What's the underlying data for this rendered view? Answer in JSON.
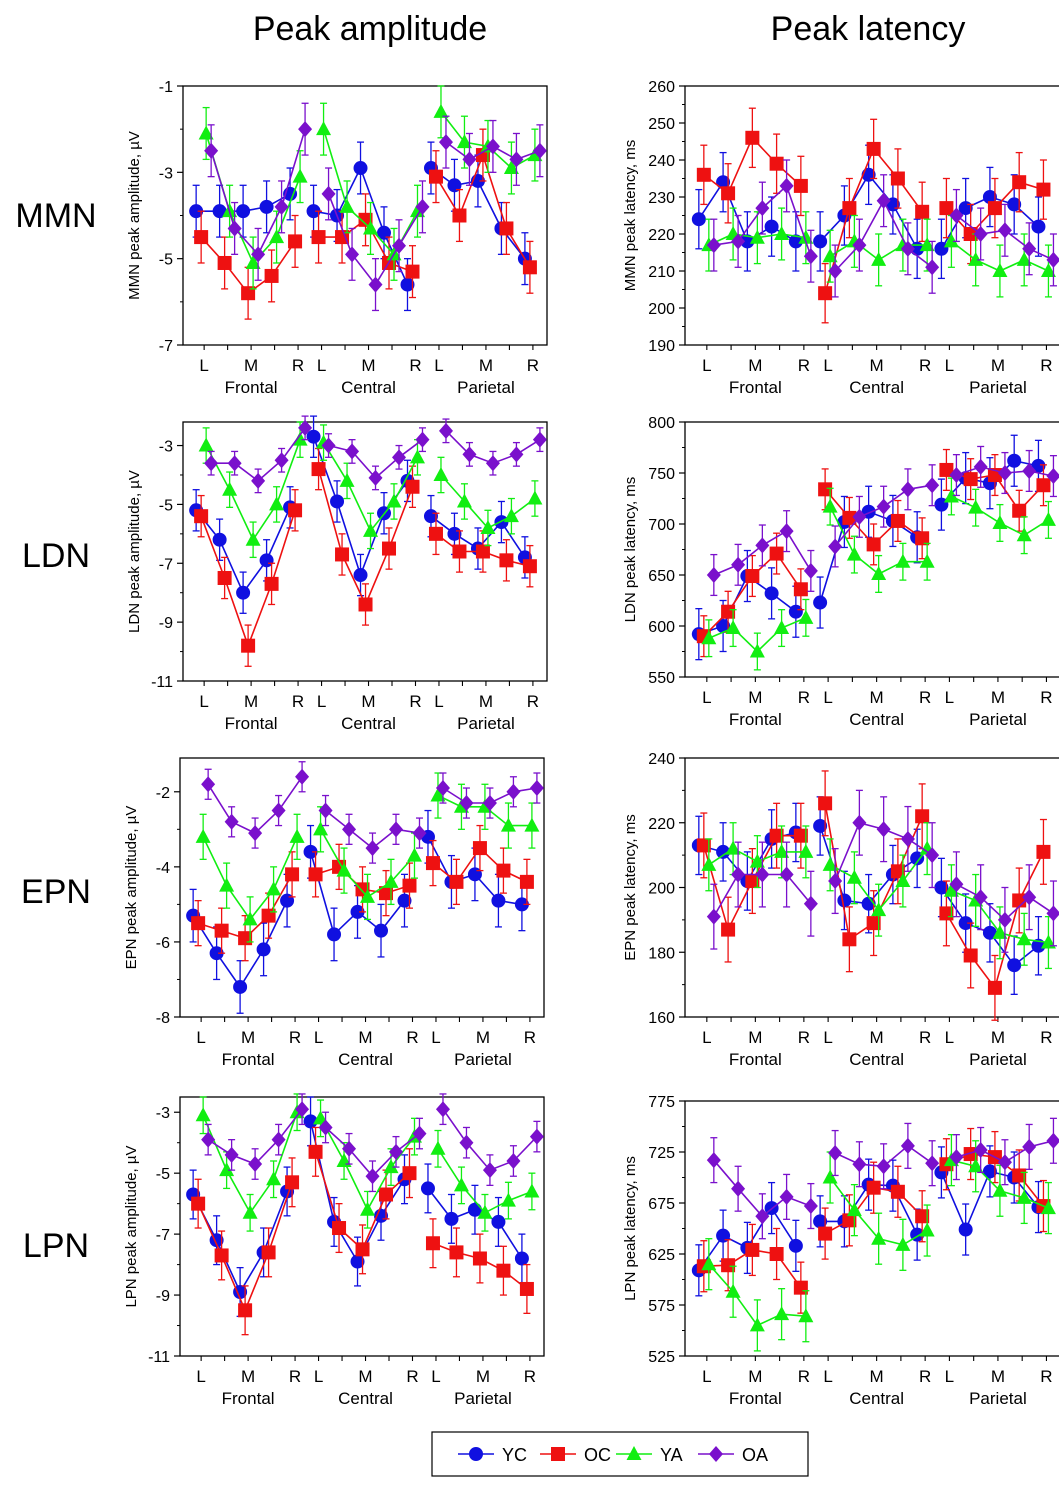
{
  "column_titles": [
    "Peak amplitude",
    "Peak latency"
  ],
  "row_labels": [
    "MMN",
    "LDN",
    "EPN",
    "LPN"
  ],
  "x_ticks": [
    "L",
    "M",
    "R",
    "L",
    "M",
    "R",
    "L",
    "M",
    "R"
  ],
  "regions": [
    "Frontal",
    "Central",
    "Parietal"
  ],
  "legend": [
    {
      "name": "YC",
      "color": "#1010e0",
      "marker": "circle"
    },
    {
      "name": "OC",
      "color": "#ee1111",
      "marker": "square"
    },
    {
      "name": "YA",
      "color": "#11ee11",
      "marker": "triangle"
    },
    {
      "name": "OA",
      "color": "#7a10cc",
      "marker": "diamond"
    }
  ],
  "chart_data": [
    {
      "type": "line",
      "component": "MMN",
      "measure": "amplitude",
      "ylabel": "MMN peak amplitude, µV",
      "ylim": [
        -7,
        -1
      ],
      "yticks": [
        -7,
        -5,
        -3,
        -1
      ],
      "ytick_labels": [
        "-7",
        "-5",
        "-3",
        "-1"
      ],
      "x": [
        1,
        2,
        3,
        4,
        5,
        6,
        7,
        8,
        9,
        10,
        11,
        12,
        13,
        14,
        15
      ],
      "series": [
        {
          "name": "YC",
          "values": [
            -3.9,
            -3.9,
            -3.9,
            -3.8,
            -3.5,
            -3.9,
            -4.0,
            -2.9,
            -4.4,
            -5.6,
            -2.9,
            -3.3,
            -3.2,
            -4.3,
            -5.0
          ],
          "err": 0.6
        },
        {
          "name": "OC",
          "values": [
            -4.5,
            -5.1,
            -5.8,
            -5.4,
            -4.6,
            -4.5,
            -4.5,
            -4.1,
            -5.1,
            -5.3,
            -3.1,
            -4.0,
            -2.6,
            -4.3,
            -5.2
          ],
          "err": 0.6
        },
        {
          "name": "YA",
          "values": [
            -2.1,
            -3.9,
            -5.1,
            -4.5,
            -3.1,
            -2.0,
            -3.8,
            -4.3,
            -4.9,
            -3.9,
            -1.6,
            -2.3,
            -2.4,
            -2.9,
            -2.6
          ],
          "err": 0.6
        },
        {
          "name": "OA",
          "values": [
            -2.5,
            -4.3,
            -4.9,
            -3.8,
            -2.0,
            -3.5,
            -4.9,
            -5.6,
            -4.7,
            -3.8,
            -2.3,
            -2.7,
            -2.4,
            -2.7,
            -2.5
          ],
          "err": 0.6
        }
      ]
    },
    {
      "type": "line",
      "component": "MMN",
      "measure": "latency",
      "ylabel": "MMN peak latency, ms",
      "ylim": [
        190,
        260
      ],
      "yticks": [
        190,
        200,
        210,
        220,
        230,
        240,
        250,
        260
      ],
      "ytick_labels": [
        "190",
        "200",
        "210",
        "220",
        "230",
        "240",
        "250",
        "260"
      ],
      "x": [
        1,
        2,
        3,
        4,
        5,
        6,
        7,
        8,
        9,
        10,
        11,
        12,
        13,
        14,
        15
      ],
      "series": [
        {
          "name": "YC",
          "values": [
            224,
            234,
            218,
            222,
            218,
            218,
            225,
            236,
            228,
            216,
            216,
            227,
            230,
            228,
            222
          ],
          "err": 8
        },
        {
          "name": "OC",
          "values": [
            236,
            231,
            246,
            239,
            233,
            204,
            227,
            243,
            235,
            226,
            227,
            220,
            227,
            234,
            232
          ],
          "err": 8
        },
        {
          "name": "YA",
          "values": [
            217,
            220,
            219,
            220,
            219,
            214,
            218,
            213,
            217,
            217,
            218,
            213,
            210,
            213,
            210
          ],
          "err": 7
        },
        {
          "name": "OA",
          "values": [
            217,
            218,
            227,
            233,
            214,
            210,
            217,
            229,
            216,
            211,
            225,
            220,
            221,
            216,
            213
          ],
          "err": 7
        }
      ]
    },
    {
      "type": "line",
      "component": "LDN",
      "measure": "amplitude",
      "ylabel": "LDN peak amplitude, µV",
      "ylim": [
        -11,
        -2.2
      ],
      "yticks": [
        -11,
        -9,
        -7,
        -5,
        -3
      ],
      "ytick_labels": [
        "-11",
        "-9",
        "-7",
        "-5",
        "-3"
      ],
      "x": [
        1,
        2,
        3,
        4,
        5,
        6,
        7,
        8,
        9,
        10,
        11,
        12,
        13,
        14,
        15
      ],
      "series": [
        {
          "name": "YC",
          "values": [
            -5.2,
            -6.2,
            -8.0,
            -6.9,
            -5.1,
            -2.7,
            -4.9,
            -7.4,
            -5.3,
            -4.2,
            -5.4,
            -6.0,
            -6.5,
            -5.6,
            -6.8
          ],
          "err": 0.7
        },
        {
          "name": "OC",
          "values": [
            -5.4,
            -7.5,
            -9.8,
            -7.7,
            -5.2,
            -3.8,
            -6.7,
            -8.4,
            -6.5,
            -4.4,
            -6.0,
            -6.6,
            -6.6,
            -6.9,
            -7.1
          ],
          "err": 0.7
        },
        {
          "name": "YA",
          "values": [
            -3.0,
            -4.5,
            -6.2,
            -5.0,
            -2.8,
            -2.9,
            -4.2,
            -5.9,
            -4.9,
            -3.4,
            -4.0,
            -4.9,
            -5.8,
            -5.4,
            -4.8
          ],
          "err": 0.6
        },
        {
          "name": "OA",
          "values": [
            -3.6,
            -3.6,
            -4.2,
            -3.5,
            -2.4,
            -3.0,
            -3.2,
            -4.1,
            -3.4,
            -2.8,
            -2.5,
            -3.3,
            -3.6,
            -3.3,
            -2.8
          ],
          "err": 0.4
        }
      ]
    },
    {
      "type": "line",
      "component": "LDN",
      "measure": "latency",
      "ylabel": "LDN peak latency, ms",
      "ylim": [
        550,
        800
      ],
      "yticks": [
        550,
        600,
        650,
        700,
        750,
        800
      ],
      "ytick_labels": [
        "550",
        "600",
        "650",
        "700",
        "750",
        "800"
      ],
      "x": [
        1,
        2,
        3,
        4,
        5,
        6,
        7,
        8,
        9,
        10,
        11,
        12,
        13,
        14,
        15
      ],
      "series": [
        {
          "name": "YC",
          "values": [
            592,
            600,
            649,
            632,
            614,
            623,
            702,
            712,
            703,
            687,
            719,
            745,
            740,
            762,
            757
          ],
          "err": 25
        },
        {
          "name": "OC",
          "values": [
            590,
            614,
            649,
            671,
            636,
            734,
            706,
            680,
            703,
            686,
            753,
            744,
            748,
            713,
            738
          ],
          "err": 20
        },
        {
          "name": "YA",
          "values": [
            588,
            598,
            575,
            598,
            608,
            717,
            670,
            651,
            663,
            663,
            727,
            716,
            701,
            689,
            704
          ],
          "err": 18
        },
        {
          "name": "OA",
          "values": [
            650,
            660,
            679,
            693,
            654,
            678,
            707,
            717,
            734,
            738,
            748,
            756,
            750,
            752,
            747
          ],
          "err": 20
        }
      ]
    },
    {
      "type": "line",
      "component": "EPN",
      "measure": "amplitude",
      "ylabel": "EPN peak amplitude, µV",
      "ylim": [
        -8,
        -1.1
      ],
      "yticks": [
        -8,
        -6,
        -4,
        -2
      ],
      "ytick_labels": [
        "-8",
        "-6",
        "-4",
        "-2"
      ],
      "x": [
        1,
        2,
        3,
        4,
        5,
        6,
        7,
        8,
        9,
        10,
        11,
        12,
        13,
        14,
        15
      ],
      "series": [
        {
          "name": "YC",
          "values": [
            -5.3,
            -6.3,
            -7.2,
            -6.2,
            -4.9,
            -3.6,
            -5.8,
            -5.2,
            -5.7,
            -4.9,
            -3.2,
            -4.4,
            -4.2,
            -4.9,
            -5.0
          ],
          "err": 0.7
        },
        {
          "name": "OC",
          "values": [
            -5.5,
            -5.7,
            -5.9,
            -5.3,
            -4.2,
            -4.2,
            -4.0,
            -4.6,
            -4.7,
            -4.5,
            -3.9,
            -4.4,
            -3.5,
            -4.1,
            -4.4
          ],
          "err": 0.6
        },
        {
          "name": "YA",
          "values": [
            -3.2,
            -4.5,
            -5.4,
            -4.6,
            -3.2,
            -3.0,
            -4.1,
            -4.8,
            -4.4,
            -3.7,
            -2.1,
            -2.4,
            -2.4,
            -2.9,
            -2.9
          ],
          "err": 0.6
        },
        {
          "name": "OA",
          "values": [
            -1.8,
            -2.8,
            -3.1,
            -2.5,
            -1.6,
            -2.5,
            -3.0,
            -3.5,
            -3.0,
            -3.1,
            -1.9,
            -2.3,
            -2.3,
            -2.0,
            -1.9
          ],
          "err": 0.4
        }
      ]
    },
    {
      "type": "line",
      "component": "EPN",
      "measure": "latency",
      "ylabel": "EPN peak latency, ms",
      "ylim": [
        160,
        240
      ],
      "yticks": [
        160,
        180,
        200,
        220,
        240
      ],
      "ytick_labels": [
        "160",
        "180",
        "200",
        "220",
        "240"
      ],
      "x": [
        1,
        2,
        3,
        4,
        5,
        6,
        7,
        8,
        9,
        10,
        11,
        12,
        13,
        14,
        15
      ],
      "series": [
        {
          "name": "YC",
          "values": [
            213,
            211,
            202,
            215,
            217,
            219,
            196,
            195,
            204,
            209,
            200,
            189,
            186,
            176,
            182
          ],
          "err": 9
        },
        {
          "name": "OC",
          "values": [
            213,
            187,
            202,
            216,
            216,
            226,
            184,
            189,
            205,
            222,
            192,
            179,
            169,
            196,
            211
          ],
          "err": 10
        },
        {
          "name": "YA",
          "values": [
            207,
            212,
            208,
            211,
            211,
            207,
            203,
            193,
            202,
            212,
            199,
            196,
            186,
            184,
            183
          ],
          "err": 8
        },
        {
          "name": "OA",
          "values": [
            191,
            204,
            204,
            204,
            195,
            202,
            220,
            218,
            215,
            210,
            201,
            197,
            190,
            197,
            192
          ],
          "err": 10
        }
      ]
    },
    {
      "type": "line",
      "component": "LPN",
      "measure": "amplitude",
      "ylabel": "LPN peak amplitude, µV",
      "ylim": [
        -11,
        -2.5
      ],
      "yticks": [
        -11,
        -9,
        -7,
        -5,
        -3
      ],
      "ytick_labels": [
        "-11",
        "-9",
        "-7",
        "-5",
        "-3"
      ],
      "x": [
        1,
        2,
        3,
        4,
        5,
        6,
        7,
        8,
        9,
        10,
        11,
        12,
        13,
        14,
        15
      ],
      "series": [
        {
          "name": "YC",
          "values": [
            -5.7,
            -7.2,
            -8.9,
            -7.6,
            -5.6,
            -3.3,
            -6.6,
            -7.9,
            -6.4,
            -5.2,
            -5.5,
            -6.5,
            -6.2,
            -6.6,
            -7.8
          ],
          "err": 0.8
        },
        {
          "name": "OC",
          "values": [
            -6.0,
            -7.7,
            -9.5,
            -7.6,
            -5.3,
            -4.3,
            -6.8,
            -7.5,
            -5.7,
            -5.0,
            -7.3,
            -7.6,
            -7.8,
            -8.2,
            -8.8
          ],
          "err": 0.8
        },
        {
          "name": "YA",
          "values": [
            -3.1,
            -4.9,
            -6.3,
            -5.2,
            -3.0,
            -3.2,
            -4.6,
            -6.2,
            -4.8,
            -3.8,
            -4.2,
            -5.4,
            -6.3,
            -5.9,
            -5.6
          ],
          "err": 0.6
        },
        {
          "name": "OA",
          "values": [
            -3.9,
            -4.4,
            -4.7,
            -3.9,
            -2.9,
            -3.5,
            -4.2,
            -5.1,
            -4.3,
            -3.7,
            -2.9,
            -4.0,
            -4.9,
            -4.6,
            -3.8
          ],
          "err": 0.5
        }
      ]
    },
    {
      "type": "line",
      "component": "LPN",
      "measure": "latency",
      "ylabel": "LPN peak latency, ms",
      "ylim": [
        525,
        775
      ],
      "yticks": [
        525,
        575,
        625,
        675,
        725,
        775
      ],
      "ytick_labels": [
        "525",
        "575",
        "625",
        "675",
        "725",
        "775"
      ],
      "x": [
        1,
        2,
        3,
        4,
        5,
        6,
        7,
        8,
        9,
        10,
        11,
        12,
        13,
        14,
        15
      ],
      "series": [
        {
          "name": "YC",
          "values": [
            609,
            643,
            631,
            670,
            633,
            657,
            657,
            693,
            692,
            644,
            705,
            649,
            706,
            700,
            671
          ],
          "err": 25
        },
        {
          "name": "OC",
          "values": [
            613,
            614,
            629,
            625,
            592,
            645,
            658,
            690,
            686,
            662,
            713,
            723,
            720,
            702,
            672
          ],
          "err": 25
        },
        {
          "name": "YA",
          "values": [
            615,
            588,
            555,
            566,
            564,
            700,
            668,
            640,
            634,
            648,
            717,
            711,
            687,
            680,
            670
          ],
          "err": 25
        },
        {
          "name": "OA",
          "values": [
            717,
            689,
            662,
            681,
            672,
            724,
            713,
            711,
            731,
            714,
            720,
            727,
            715,
            730,
            736
          ],
          "err": 22
        }
      ]
    }
  ]
}
